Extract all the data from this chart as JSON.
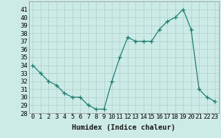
{
  "x": [
    0,
    1,
    2,
    3,
    4,
    5,
    6,
    7,
    8,
    9,
    10,
    11,
    12,
    13,
    14,
    15,
    16,
    17,
    18,
    19,
    20,
    21,
    22,
    23
  ],
  "y": [
    34,
    33,
    32,
    31.5,
    30.5,
    30,
    30,
    29,
    28.5,
    28.5,
    32,
    35,
    37.5,
    37,
    37,
    37,
    38.5,
    39.5,
    40,
    41,
    38.5,
    31,
    30,
    29.5
  ],
  "xlabel": "Humidex (Indice chaleur)",
  "ylim": [
    28,
    42
  ],
  "xlim": [
    -0.5,
    23.5
  ],
  "yticks": [
    28,
    29,
    30,
    31,
    32,
    33,
    34,
    35,
    36,
    37,
    38,
    39,
    40,
    41
  ],
  "xticks": [
    0,
    1,
    2,
    3,
    4,
    5,
    6,
    7,
    8,
    9,
    10,
    11,
    12,
    13,
    14,
    15,
    16,
    17,
    18,
    19,
    20,
    21,
    22,
    23
  ],
  "line_color": "#1a7a6e",
  "marker_color": "#1a7a6e",
  "bg_color": "#cceae6",
  "grid_color": "#aacfcc",
  "tick_label_fontsize": 6.5,
  "xlabel_fontsize": 7.5
}
